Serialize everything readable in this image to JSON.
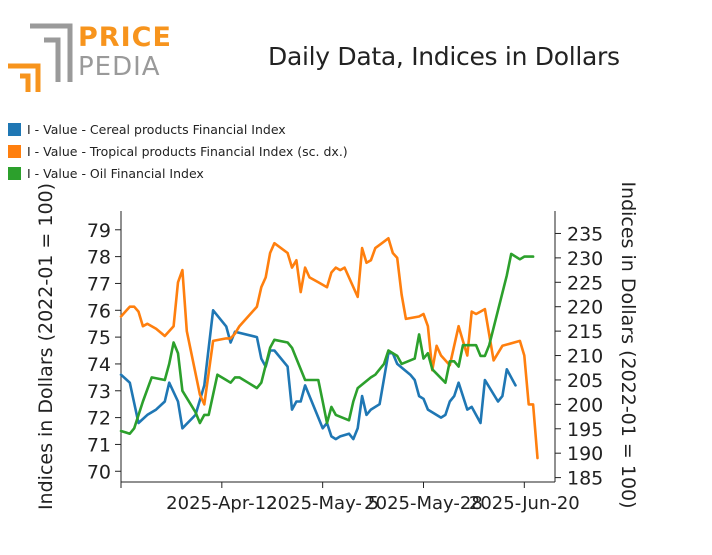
{
  "brand": {
    "word1": "PRICE",
    "word2": "PEDIA",
    "color_primary": "#f7941d",
    "color_secondary": "#9a9a9a"
  },
  "chart_data": {
    "type": "line",
    "title": "Daily Data, Indices in Dollars",
    "ylabel_left": "Indices in Dollars (2022-01 = 100)",
    "ylabel_right": "Indices in Dollars (2022-01 = 100)",
    "x_ticks": [
      {
        "label": "2025-Apr-12",
        "day": 11
      },
      {
        "label": "2025-May- 5",
        "day": 34
      },
      {
        "label": "2025-May-28",
        "day": 57
      },
      {
        "label": "2025-Jun-20",
        "day": 80
      }
    ],
    "x_range": [
      -12,
      87
    ],
    "ylim_left": [
      69.6,
      79.7
    ],
    "yticks_left": [
      70,
      71,
      72,
      73,
      74,
      75,
      76,
      77,
      78,
      79
    ],
    "ylim_right": [
      184.1,
      239.6
    ],
    "yticks_right": [
      185,
      190,
      195,
      200,
      205,
      210,
      215,
      220,
      225,
      230,
      235
    ],
    "series": [
      {
        "name": "I - Value - Cereal products Financial Index",
        "color": "#1f77b4",
        "axis": "left",
        "points": [
          [
            -12,
            73.6
          ],
          [
            -10,
            73.3
          ],
          [
            -8,
            71.8
          ],
          [
            -6,
            72.1
          ],
          [
            -4,
            72.3
          ],
          [
            -2,
            72.6
          ],
          [
            -1,
            73.3
          ],
          [
            1,
            72.6
          ],
          [
            2,
            71.6
          ],
          [
            5,
            72.1
          ],
          [
            7,
            73.2
          ],
          [
            8,
            74.6
          ],
          [
            9,
            76.0
          ],
          [
            12,
            75.4
          ],
          [
            13,
            74.8
          ],
          [
            14,
            75.2
          ],
          [
            19,
            75.0
          ],
          [
            20,
            74.2
          ],
          [
            21,
            73.9
          ],
          [
            22,
            74.5
          ],
          [
            23,
            74.5
          ],
          [
            26,
            73.9
          ],
          [
            27,
            72.3
          ],
          [
            28,
            72.6
          ],
          [
            29,
            72.6
          ],
          [
            30,
            73.2
          ],
          [
            34,
            71.6
          ],
          [
            35,
            71.8
          ],
          [
            36,
            71.3
          ],
          [
            37,
            71.2
          ],
          [
            38,
            71.3
          ],
          [
            40,
            71.4
          ],
          [
            41,
            71.2
          ],
          [
            42,
            71.6
          ],
          [
            43,
            72.8
          ],
          [
            44,
            72.1
          ],
          [
            45,
            72.3
          ],
          [
            47,
            72.5
          ],
          [
            49,
            74.4
          ],
          [
            50,
            74.4
          ],
          [
            51,
            74.0
          ],
          [
            54,
            73.6
          ],
          [
            55,
            73.4
          ],
          [
            56,
            72.8
          ],
          [
            57,
            72.7
          ],
          [
            58,
            72.3
          ],
          [
            61,
            72.0
          ],
          [
            62,
            72.1
          ],
          [
            63,
            72.6
          ],
          [
            64,
            72.8
          ],
          [
            65,
            73.3
          ],
          [
            67,
            72.3
          ],
          [
            68,
            72.4
          ],
          [
            70,
            71.8
          ],
          [
            71,
            73.4
          ],
          [
            74,
            72.6
          ],
          [
            75,
            72.8
          ],
          [
            76,
            73.8
          ],
          [
            78,
            73.2
          ]
        ]
      },
      {
        "name": "I - Value - Tropical products Financial Index (sc. dx.)",
        "color": "#ff7f0e",
        "axis": "right",
        "points": [
          [
            -12,
            218
          ],
          [
            -10,
            220
          ],
          [
            -9,
            220
          ],
          [
            -8,
            219
          ],
          [
            -7,
            216
          ],
          [
            -6,
            216.5
          ],
          [
            -4,
            215.5
          ],
          [
            -2,
            214
          ],
          [
            0,
            216
          ],
          [
            1,
            225
          ],
          [
            2,
            227.5
          ],
          [
            3,
            215
          ],
          [
            6,
            202
          ],
          [
            7,
            200
          ],
          [
            9,
            213
          ],
          [
            12,
            213.5
          ],
          [
            13,
            213.5
          ],
          [
            14,
            214.5
          ],
          [
            15,
            216
          ],
          [
            19,
            220
          ],
          [
            20,
            224
          ],
          [
            21,
            226
          ],
          [
            22,
            231
          ],
          [
            23,
            233
          ],
          [
            26,
            231
          ],
          [
            27,
            228
          ],
          [
            28,
            229.5
          ],
          [
            29,
            223
          ],
          [
            30,
            228
          ],
          [
            31,
            226
          ],
          [
            33,
            225
          ],
          [
            35,
            224
          ],
          [
            36,
            227
          ],
          [
            37,
            228
          ],
          [
            38,
            227.5
          ],
          [
            39,
            228
          ],
          [
            42,
            222
          ],
          [
            43,
            232
          ],
          [
            44,
            229
          ],
          [
            45,
            229.5
          ],
          [
            46,
            232
          ],
          [
            49,
            234
          ],
          [
            50,
            231
          ],
          [
            51,
            230
          ],
          [
            52,
            222.5
          ],
          [
            53,
            217.5
          ],
          [
            56,
            218
          ],
          [
            57,
            218.5
          ],
          [
            58,
            216
          ],
          [
            59,
            207
          ],
          [
            60,
            212
          ],
          [
            61,
            210
          ],
          [
            63,
            208
          ],
          [
            65,
            216
          ],
          [
            66,
            213
          ],
          [
            67,
            210
          ],
          [
            68,
            219
          ],
          [
            69,
            218.5
          ],
          [
            70,
            219
          ],
          [
            71,
            219.5
          ],
          [
            73,
            209
          ],
          [
            75,
            212
          ],
          [
            79,
            213
          ],
          [
            80,
            210
          ],
          [
            81,
            200
          ],
          [
            82,
            200
          ],
          [
            83,
            189
          ]
        ]
      },
      {
        "name": "I - Value - Oil Financial Index",
        "color": "#2ca02c",
        "axis": "left",
        "points": [
          [
            -12,
            71.5
          ],
          [
            -10,
            71.4
          ],
          [
            -9,
            71.6
          ],
          [
            -7,
            72.6
          ],
          [
            -5,
            73.5
          ],
          [
            -2,
            73.4
          ],
          [
            -1,
            74.0
          ],
          [
            0,
            74.8
          ],
          [
            1,
            74.4
          ],
          [
            2,
            73.0
          ],
          [
            5,
            72.2
          ],
          [
            6,
            71.8
          ],
          [
            7,
            72.1
          ],
          [
            8,
            72.1
          ],
          [
            10,
            73.6
          ],
          [
            12,
            73.4
          ],
          [
            13,
            73.3
          ],
          [
            14,
            73.5
          ],
          [
            15,
            73.5
          ],
          [
            17,
            73.3
          ],
          [
            19,
            73.1
          ],
          [
            20,
            73.3
          ],
          [
            22,
            74.6
          ],
          [
            23,
            74.9
          ],
          [
            26,
            74.8
          ],
          [
            27,
            74.6
          ],
          [
            28,
            74.2
          ],
          [
            30,
            73.4
          ],
          [
            31,
            73.4
          ],
          [
            33,
            73.4
          ],
          [
            34,
            72.6
          ],
          [
            35,
            71.8
          ],
          [
            36,
            72.4
          ],
          [
            37,
            72.1
          ],
          [
            40,
            71.9
          ],
          [
            41,
            72.6
          ],
          [
            42,
            73.1
          ],
          [
            45,
            73.5
          ],
          [
            46,
            73.6
          ],
          [
            47,
            73.8
          ],
          [
            48,
            74.0
          ],
          [
            49,
            74.5
          ],
          [
            50,
            74.4
          ],
          [
            51,
            74.3
          ],
          [
            52,
            74.0
          ],
          [
            55,
            74.2
          ],
          [
            56,
            75.1
          ],
          [
            57,
            74.2
          ],
          [
            58,
            74.4
          ],
          [
            59,
            73.8
          ],
          [
            62,
            73.3
          ],
          [
            63,
            74.1
          ],
          [
            64,
            74.1
          ],
          [
            65,
            73.9
          ],
          [
            66,
            74.7
          ],
          [
            69,
            74.7
          ],
          [
            70,
            74.3
          ],
          [
            71,
            74.3
          ],
          [
            72,
            74.7
          ],
          [
            74,
            76.0
          ],
          [
            76,
            77.3
          ],
          [
            77,
            78.1
          ],
          [
            79,
            77.9
          ],
          [
            80,
            78.0
          ],
          [
            81,
            78.0
          ],
          [
            82,
            78.0
          ]
        ]
      }
    ]
  }
}
